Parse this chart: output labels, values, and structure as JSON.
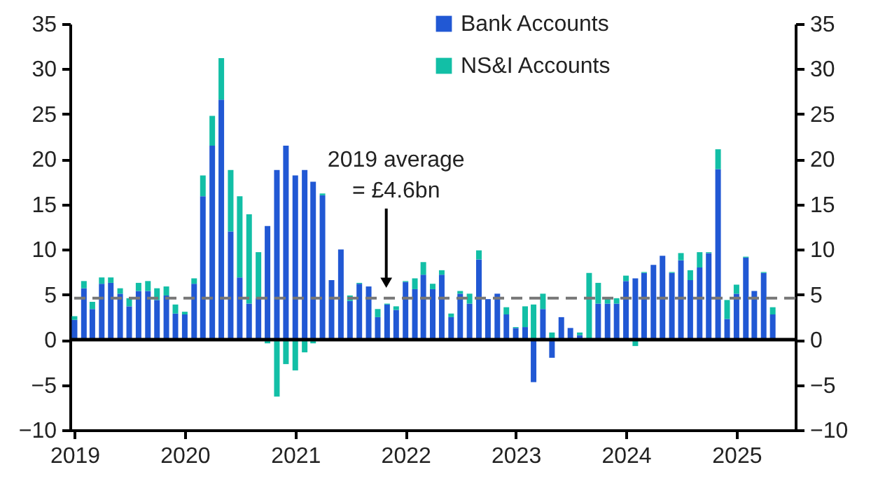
{
  "chart_data": {
    "type": "bar",
    "stacked": true,
    "x": [
      "2019-01",
      "2019-02",
      "2019-03",
      "2019-04",
      "2019-05",
      "2019-06",
      "2019-07",
      "2019-08",
      "2019-09",
      "2019-10",
      "2019-11",
      "2019-12",
      "2020-01",
      "2020-02",
      "2020-03",
      "2020-04",
      "2020-05",
      "2020-06",
      "2020-07",
      "2020-08",
      "2020-09",
      "2020-10",
      "2020-11",
      "2020-12",
      "2021-01",
      "2021-02",
      "2021-03",
      "2021-04",
      "2021-05",
      "2021-06",
      "2021-07",
      "2021-08",
      "2021-09",
      "2021-10",
      "2021-11",
      "2021-12",
      "2022-01",
      "2022-02",
      "2022-03",
      "2022-04",
      "2022-05",
      "2022-06",
      "2022-07",
      "2022-08",
      "2022-09",
      "2022-10",
      "2022-11",
      "2022-12",
      "2023-01",
      "2023-02",
      "2023-03",
      "2023-04",
      "2023-05",
      "2023-06",
      "2023-07",
      "2023-08",
      "2023-09",
      "2023-10",
      "2023-11",
      "2023-12",
      "2024-01",
      "2024-02",
      "2024-03",
      "2024-04",
      "2024-05",
      "2024-06",
      "2024-07",
      "2024-08",
      "2024-09",
      "2024-10",
      "2024-11",
      "2024-12",
      "2025-01",
      "2025-02",
      "2025-03",
      "2025-04",
      "2025-05"
    ],
    "series": [
      {
        "name": "Bank Accounts",
        "color": "#2158d4",
        "values": [
          2.2,
          5.7,
          3.4,
          6.2,
          6.3,
          5.1,
          3.7,
          5.4,
          5.4,
          4.4,
          4.9,
          2.9,
          2.8,
          6.2,
          15.9,
          21.5,
          26.6,
          12.0,
          6.9,
          4.0,
          4.6,
          12.6,
          18.8,
          21.5,
          18.2,
          18.8,
          17.5,
          16.0,
          6.6,
          10.0,
          4.3,
          6.2,
          5.9,
          2.5,
          3.9,
          3.3,
          6.4,
          5.6,
          7.2,
          5.6,
          7.2,
          2.5,
          5.1,
          4.0,
          8.9,
          4.5,
          5.1,
          2.8,
          1.3,
          1.4,
          -4.7,
          3.4,
          -2.0,
          2.5,
          1.3,
          0.5,
          0,
          4.0,
          4.0,
          4.0,
          6.5,
          6.8,
          7.4,
          8.3,
          9.3,
          7.4,
          8.8,
          6.6,
          8.0,
          9.6,
          18.9,
          2.3,
          5.1,
          9.1,
          5.4,
          7.4,
          2.8
        ]
      },
      {
        "name": "NS&I Accounts",
        "color": "#12bfa6",
        "values": [
          0.4,
          0.8,
          0.8,
          0.7,
          0.6,
          0.6,
          0.9,
          0.9,
          1.1,
          1.3,
          1.0,
          1.0,
          0.3,
          0.6,
          2.3,
          3.3,
          4.6,
          6.8,
          9.0,
          9.9,
          5.1,
          -0.4,
          -6.3,
          -2.7,
          -3.4,
          -1.4,
          -0.4,
          0.2,
          0,
          0,
          0.6,
          0.1,
          0,
          0.9,
          0.1,
          0.4,
          0.1,
          1.2,
          1.4,
          0.6,
          0.5,
          0.4,
          0.3,
          1.1,
          1.0,
          0,
          0,
          0.8,
          0.1,
          2.3,
          3.9,
          1.7,
          0.8,
          0,
          0,
          0.3,
          7.4,
          2.3,
          0.6,
          0.6,
          0.6,
          -0.7,
          0.1,
          0,
          0,
          0.1,
          0.8,
          1.1,
          1.7,
          0.1,
          2.2,
          2.1,
          1.0,
          0.1,
          0,
          0.1,
          0.8
        ]
      }
    ],
    "xlim": [
      "2018-12-17",
      "2025-07-15"
    ],
    "xticks": [
      "2019",
      "2020",
      "2021",
      "2022",
      "2023",
      "2024",
      "2025"
    ],
    "ylim": [
      -10,
      35
    ],
    "yticks": [
      -10,
      -5,
      0,
      5,
      10,
      15,
      20,
      25,
      30,
      35
    ],
    "y2lim": [
      -10,
      35
    ],
    "y2ticks": [
      -10,
      -5,
      0,
      5,
      10,
      15,
      20,
      25,
      30,
      35
    ],
    "legend": "top",
    "ref_lines": [
      {
        "axis": "y",
        "value": 4.6,
        "color": "#777777",
        "line_style": "dashed"
      },
      {
        "axis": "y",
        "value": 0,
        "color": "#000000",
        "line_style": "solid"
      }
    ],
    "annotations": [
      "2019 average\n= £4.6bn"
    ]
  }
}
